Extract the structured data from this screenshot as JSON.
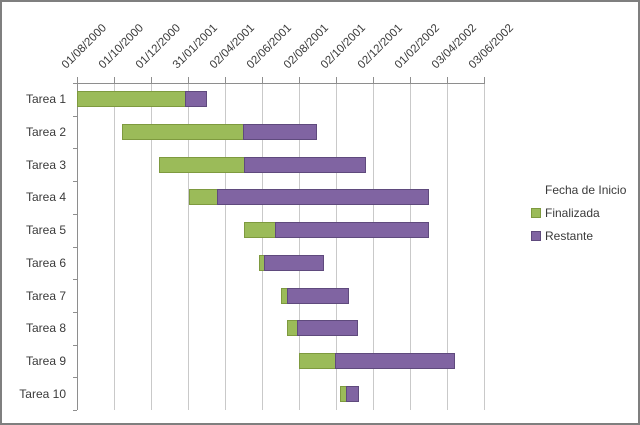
{
  "chart_data": {
    "type": "bar",
    "subtype": "horizontal-stacked-gantt",
    "title": "",
    "categories": [
      "Tarea 1",
      "Tarea 2",
      "Tarea 3",
      "Tarea 4",
      "Tarea 5",
      "Tarea 6",
      "Tarea 7",
      "Tarea 8",
      "Tarea 9",
      "Tarea 10"
    ],
    "x_axis": {
      "position": "top",
      "tick_labels": [
        "01/08/2000",
        "01/10/2000",
        "01/12/2000",
        "31/01/2001",
        "02/04/2001",
        "02/06/2001",
        "02/08/2001",
        "02/10/2001",
        "02/12/2001",
        "01/02/2002",
        "03/04/2002",
        "03/06/2002"
      ],
      "range_days": [
        0,
        671
      ],
      "tick_interval_days": 61,
      "label_rotation_deg": 45,
      "grid": true
    },
    "series": [
      {
        "name": "Fecha de Inicio",
        "role": "hidden-start-offset",
        "color": null,
        "values_days": [
          0,
          75,
          135,
          184,
          276,
          300,
          337,
          346,
          366,
          434
        ]
      },
      {
        "name": "Finalizada",
        "color": "#9bbb59",
        "values_days": [
          178,
          199,
          141,
          47,
          50,
          8,
          9,
          16,
          59,
          10
        ]
      },
      {
        "name": "Restante",
        "color": "#8064a2",
        "values_days": [
          36,
          121,
          200,
          349,
          254,
          100,
          102,
          102,
          199,
          21
        ]
      }
    ],
    "legend": {
      "position": "right",
      "title": "Fecha de Inicio",
      "entries": [
        {
          "label": "Fecha de Inicio",
          "color": null
        },
        {
          "label": "Finalizada",
          "color": "#9bbb59"
        },
        {
          "label": "Restante",
          "color": "#8064a2"
        }
      ]
    }
  },
  "colors": {
    "finalizada_fill": "#9bbb59",
    "finalizada_border": "#7e9a3f",
    "restante_fill": "#8064a2",
    "restante_border": "#5f4a7d",
    "gridline": "#c9c9c9",
    "axis": "#8e8e8e",
    "text": "#3a3a3a",
    "frame_border": "#7f7f7f",
    "background": "#ffffff"
  }
}
